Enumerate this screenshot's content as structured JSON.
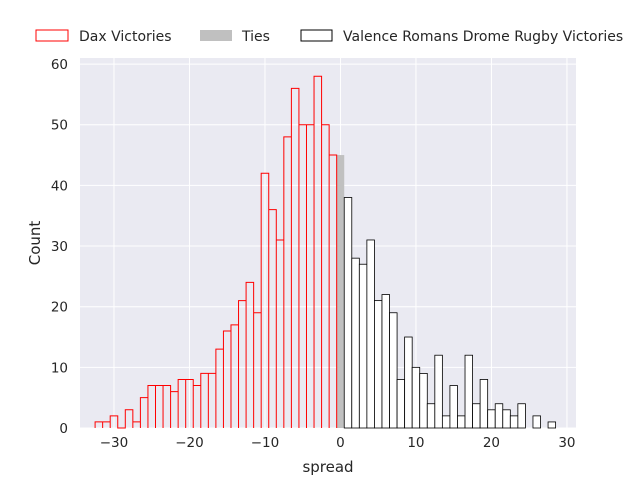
{
  "chart_data": {
    "type": "bar",
    "xlabel": "spread",
    "ylabel": "Count",
    "xlim": [
      -34.5,
      31.2
    ],
    "ylim": [
      0,
      61
    ],
    "xticks": [
      -30,
      -20,
      -10,
      0,
      10,
      20,
      30
    ],
    "yticks": [
      0,
      10,
      20,
      30,
      40,
      50,
      60
    ],
    "bin_width": 1,
    "grid": true,
    "legend_position": "top, above plot",
    "colors": {
      "background": "#EAEAF2",
      "grid": "#ffffff",
      "dax": "#FF0000",
      "ties": "#C0C0C0",
      "valence": "#000000",
      "valence_fill": "#ffffff"
    },
    "series": [
      {
        "name": "Dax Victories",
        "style": "step-outline",
        "x": [
          -32,
          -31,
          -30,
          -29,
          -28,
          -27,
          -26,
          -25,
          -24,
          -23,
          -22,
          -21,
          -20,
          -19,
          -18,
          -17,
          -16,
          -15,
          -14,
          -13,
          -12,
          -11,
          -10,
          -9,
          -8,
          -7,
          -6,
          -5,
          -4,
          -3,
          -2,
          -1
        ],
        "values": [
          1,
          1,
          2,
          0,
          3,
          1,
          5,
          7,
          7,
          7,
          6,
          8,
          8,
          7,
          9,
          9,
          13,
          16,
          17,
          21,
          24,
          19,
          42,
          36,
          31,
          48,
          56,
          50,
          50,
          58,
          50,
          45
        ]
      },
      {
        "name": "Ties",
        "style": "filled",
        "x": [
          0
        ],
        "values": [
          45
        ]
      },
      {
        "name": "Valence Romans Drome Rugby Victories",
        "style": "outlined-bars",
        "x": [
          1,
          2,
          3,
          4,
          5,
          6,
          7,
          8,
          9,
          10,
          11,
          12,
          13,
          14,
          15,
          16,
          17,
          18,
          19,
          20,
          21,
          22,
          23,
          24,
          25,
          26,
          27,
          28
        ],
        "values": [
          38,
          28,
          27,
          31,
          21,
          22,
          19,
          8,
          15,
          10,
          9,
          4,
          12,
          2,
          7,
          2,
          12,
          4,
          8,
          3,
          4,
          3,
          2,
          4,
          0,
          2,
          0,
          1
        ]
      }
    ]
  }
}
